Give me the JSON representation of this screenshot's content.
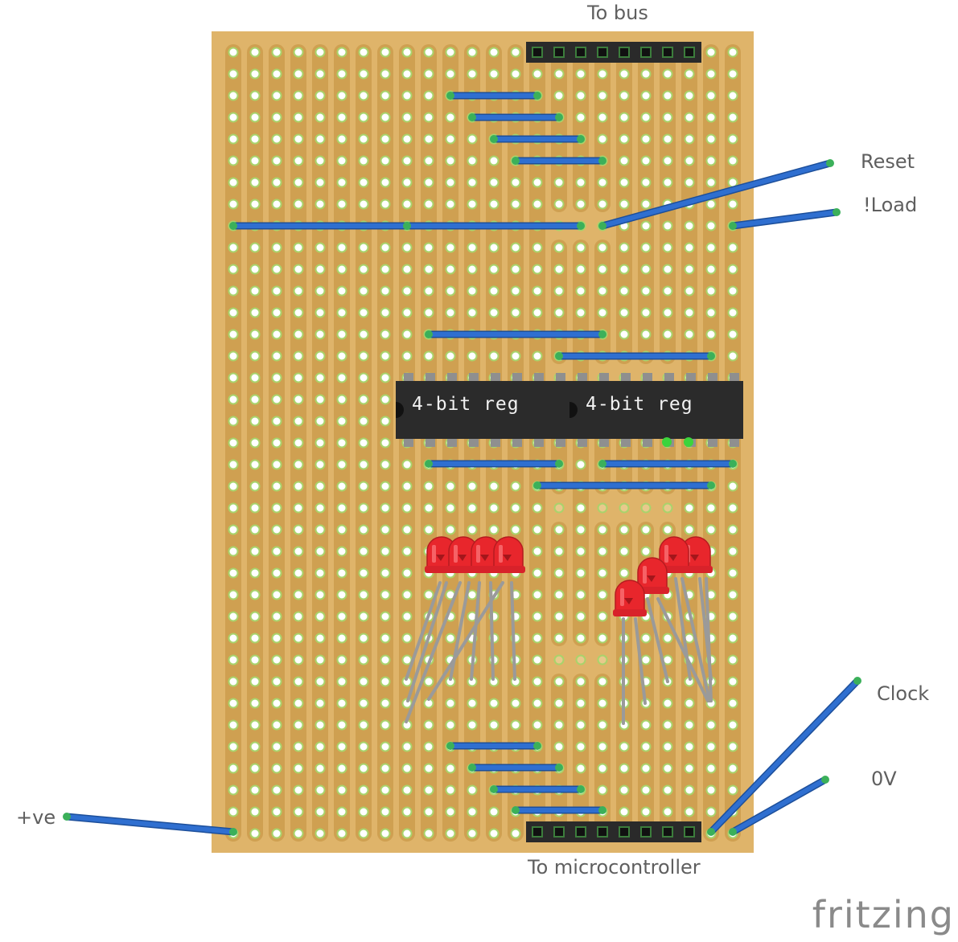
{
  "labels": {
    "to_bus": "To bus",
    "reset": "Reset",
    "load": "!Load",
    "clock": "Clock",
    "zero_v": "0V",
    "positive": "+ve",
    "to_micro": "To microcontroller"
  },
  "chips": [
    {
      "label": "4-bit reg"
    },
    {
      "label": "4-bit reg"
    }
  ],
  "logo": "fritzing",
  "colors": {
    "board": "#dfb46a",
    "strip": "#c99a4a",
    "hole": "#ffffff",
    "hole_ring": "#a9d36b",
    "wire": "#2f6fd0",
    "wire_end": "#3bb05a",
    "chip": "#2b2b2b",
    "header": "#2a2a2a",
    "led": "#e8262c",
    "lead": "#9a9a9a"
  }
}
